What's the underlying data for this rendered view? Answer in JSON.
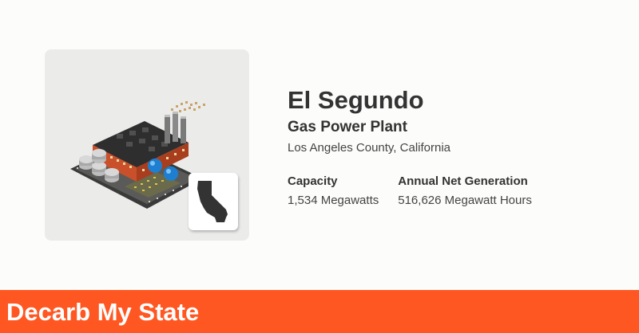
{
  "plant": {
    "name": "El Segundo",
    "type": "Gas Power Plant",
    "location": "Los Angeles County, California"
  },
  "stats": {
    "capacity": {
      "label": "Capacity",
      "value": "1,534 Megawatts"
    },
    "generation": {
      "label": "Annual Net Generation",
      "value": "516,626 Megawatt Hours"
    }
  },
  "footer": {
    "brand": "Decarb My State"
  },
  "icons": {
    "plant": "gas-power-plant-icon",
    "state": "california-state-icon"
  },
  "colors": {
    "accent": "#ff5722",
    "card_background": "#ebebea",
    "text": "#333333"
  }
}
